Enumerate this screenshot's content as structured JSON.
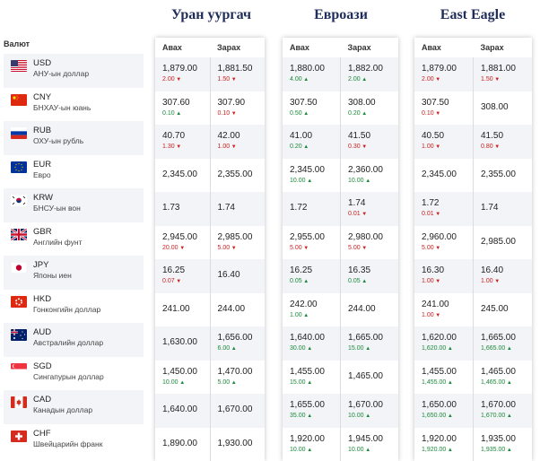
{
  "columns_header": "Валют",
  "labels": {
    "buy": "Авах",
    "sell": "Зарах"
  },
  "banks": [
    {
      "name": "Уран уургач"
    },
    {
      "name": "Евроази"
    },
    {
      "name": "East Eagle"
    }
  ],
  "currencies": [
    {
      "code": "USD",
      "name": "АНУ-ын доллар",
      "flag": "us-flag-icon"
    },
    {
      "code": "CNY",
      "name": "БНХАУ-ын юань",
      "flag": "cn-flag-icon"
    },
    {
      "code": "RUB",
      "name": "ОХУ-ын рубль",
      "flag": "ru-flag-icon"
    },
    {
      "code": "EUR",
      "name": "Евро",
      "flag": "eu-flag-icon"
    },
    {
      "code": "KRW",
      "name": "БНСУ-ын вон",
      "flag": "kr-flag-icon"
    },
    {
      "code": "GBR",
      "name": "Английн фунт",
      "flag": "gb-flag-icon"
    },
    {
      "code": "JPY",
      "name": "Японы иен",
      "flag": "jp-flag-icon"
    },
    {
      "code": "HKD",
      "name": "Гонконгийн доллар",
      "flag": "hk-flag-icon"
    },
    {
      "code": "AUD",
      "name": "Австралийн доллар",
      "flag": "au-flag-icon"
    },
    {
      "code": "SGD",
      "name": "Сингапурын доллар",
      "flag": "sg-flag-icon"
    },
    {
      "code": "CAD",
      "name": "Канадын доллар",
      "flag": "ca-flag-icon"
    },
    {
      "code": "CHF",
      "name": "Швейцарийн франк",
      "flag": "ch-flag-icon"
    }
  ],
  "rates": [
    [
      {
        "buy": "1,879.00",
        "buy_chg": "2.00",
        "buy_dir": "down",
        "sell": "1,881.50",
        "sell_chg": "1.50",
        "sell_dir": "down"
      },
      {
        "buy": "307.60",
        "buy_chg": "0.10",
        "buy_dir": "up",
        "sell": "307.90",
        "sell_chg": "0.10",
        "sell_dir": "down"
      },
      {
        "buy": "40.70",
        "buy_chg": "1.30",
        "buy_dir": "down",
        "sell": "42.00",
        "sell_chg": "1.00",
        "sell_dir": "down"
      },
      {
        "buy": "2,345.00",
        "buy_chg": "",
        "buy_dir": "",
        "sell": "2,355.00",
        "sell_chg": "",
        "sell_dir": ""
      },
      {
        "buy": "1.73",
        "buy_chg": "",
        "buy_dir": "",
        "sell": "1.74",
        "sell_chg": "",
        "sell_dir": ""
      },
      {
        "buy": "2,945.00",
        "buy_chg": "20.00",
        "buy_dir": "down",
        "sell": "2,985.00",
        "sell_chg": "5.00",
        "sell_dir": "down"
      },
      {
        "buy": "16.25",
        "buy_chg": "0.07",
        "buy_dir": "down",
        "sell": "16.40",
        "sell_chg": "",
        "sell_dir": ""
      },
      {
        "buy": "241.00",
        "buy_chg": "",
        "buy_dir": "",
        "sell": "244.00",
        "sell_chg": "",
        "sell_dir": ""
      },
      {
        "buy": "1,630.00",
        "buy_chg": "",
        "buy_dir": "",
        "sell": "1,656.00",
        "sell_chg": "6.00",
        "sell_dir": "up"
      },
      {
        "buy": "1,450.00",
        "buy_chg": "10.00",
        "buy_dir": "up",
        "sell": "1,470.00",
        "sell_chg": "5.00",
        "sell_dir": "up"
      },
      {
        "buy": "1,640.00",
        "buy_chg": "",
        "buy_dir": "",
        "sell": "1,670.00",
        "sell_chg": "",
        "sell_dir": ""
      },
      {
        "buy": "1,890.00",
        "buy_chg": "",
        "buy_dir": "",
        "sell": "1,930.00",
        "sell_chg": "",
        "sell_dir": ""
      }
    ],
    [
      {
        "buy": "1,880.00",
        "buy_chg": "4.00",
        "buy_dir": "up",
        "sell": "1,882.00",
        "sell_chg": "2.00",
        "sell_dir": "up"
      },
      {
        "buy": "307.50",
        "buy_chg": "0.50",
        "buy_dir": "up",
        "sell": "308.00",
        "sell_chg": "0.20",
        "sell_dir": "up"
      },
      {
        "buy": "41.00",
        "buy_chg": "0.20",
        "buy_dir": "up",
        "sell": "41.50",
        "sell_chg": "0.30",
        "sell_dir": "down"
      },
      {
        "buy": "2,345.00",
        "buy_chg": "10.00",
        "buy_dir": "up",
        "sell": "2,360.00",
        "sell_chg": "10.00",
        "sell_dir": "up"
      },
      {
        "buy": "1.72",
        "buy_chg": "",
        "buy_dir": "",
        "sell": "1.74",
        "sell_chg": "0.01",
        "sell_dir": "down"
      },
      {
        "buy": "2,955.00",
        "buy_chg": "5.00",
        "buy_dir": "down",
        "sell": "2,980.00",
        "sell_chg": "5.00",
        "sell_dir": "down"
      },
      {
        "buy": "16.25",
        "buy_chg": "0.05",
        "buy_dir": "up",
        "sell": "16.35",
        "sell_chg": "0.05",
        "sell_dir": "up"
      },
      {
        "buy": "242.00",
        "buy_chg": "1.00",
        "buy_dir": "up",
        "sell": "244.00",
        "sell_chg": "",
        "sell_dir": ""
      },
      {
        "buy": "1,640.00",
        "buy_chg": "30.00",
        "buy_dir": "up",
        "sell": "1,665.00",
        "sell_chg": "15.00",
        "sell_dir": "up"
      },
      {
        "buy": "1,455.00",
        "buy_chg": "15.00",
        "buy_dir": "up",
        "sell": "1,465.00",
        "sell_chg": "",
        "sell_dir": ""
      },
      {
        "buy": "1,655.00",
        "buy_chg": "35.00",
        "buy_dir": "up",
        "sell": "1,670.00",
        "sell_chg": "10.00",
        "sell_dir": "up"
      },
      {
        "buy": "1,920.00",
        "buy_chg": "10.00",
        "buy_dir": "up",
        "sell": "1,945.00",
        "sell_chg": "10.00",
        "sell_dir": "up"
      }
    ],
    [
      {
        "buy": "1,879.00",
        "buy_chg": "2.00",
        "buy_dir": "down",
        "sell": "1,881.00",
        "sell_chg": "1.50",
        "sell_dir": "down"
      },
      {
        "buy": "307.50",
        "buy_chg": "0.10",
        "buy_dir": "down",
        "sell": "308.00",
        "sell_chg": "",
        "sell_dir": ""
      },
      {
        "buy": "40.50",
        "buy_chg": "1.00",
        "buy_dir": "down",
        "sell": "41.50",
        "sell_chg": "0.80",
        "sell_dir": "down"
      },
      {
        "buy": "2,345.00",
        "buy_chg": "",
        "buy_dir": "",
        "sell": "2,355.00",
        "sell_chg": "",
        "sell_dir": ""
      },
      {
        "buy": "1.72",
        "buy_chg": "0.01",
        "buy_dir": "down",
        "sell": "1.74",
        "sell_chg": "",
        "sell_dir": ""
      },
      {
        "buy": "2,960.00",
        "buy_chg": "5.00",
        "buy_dir": "down",
        "sell": "2,985.00",
        "sell_chg": "",
        "sell_dir": ""
      },
      {
        "buy": "16.30",
        "buy_chg": "1.00",
        "buy_dir": "down",
        "sell": "16.40",
        "sell_chg": "1.00",
        "sell_dir": "down"
      },
      {
        "buy": "241.00",
        "buy_chg": "1.00",
        "buy_dir": "down",
        "sell": "245.00",
        "sell_chg": "",
        "sell_dir": ""
      },
      {
        "buy": "1,620.00",
        "buy_chg": "1,620.00",
        "buy_dir": "up",
        "sell": "1,665.00",
        "sell_chg": "1,665.00",
        "sell_dir": "up"
      },
      {
        "buy": "1,455.00",
        "buy_chg": "1,455.00",
        "buy_dir": "up",
        "sell": "1,465.00",
        "sell_chg": "1,465.00",
        "sell_dir": "up"
      },
      {
        "buy": "1,650.00",
        "buy_chg": "1,650.00",
        "buy_dir": "up",
        "sell": "1,670.00",
        "sell_chg": "1,670.00",
        "sell_dir": "up"
      },
      {
        "buy": "1,920.00",
        "buy_chg": "1,920.00",
        "buy_dir": "up",
        "sell": "1,935.00",
        "sell_chg": "1,935.00",
        "sell_dir": "up"
      }
    ]
  ]
}
